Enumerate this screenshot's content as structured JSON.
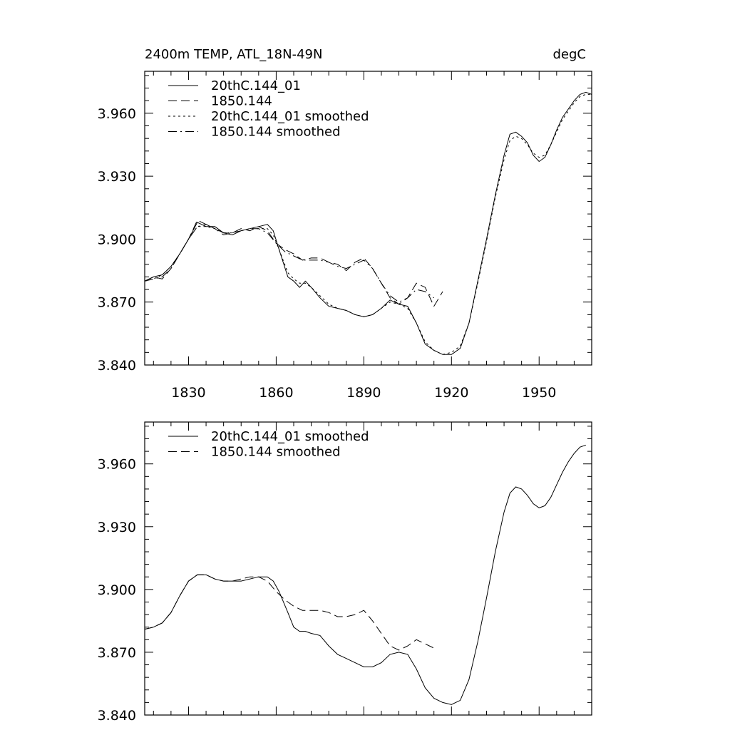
{
  "chart_data": [
    {
      "type": "line",
      "title": "2400m TEMP, ATL_18N-49N",
      "units_label": "degC",
      "xlabel": "",
      "ylabel": "",
      "xlim": [
        1815,
        1968
      ],
      "ylim": [
        3.84,
        3.98
      ],
      "xticks": [
        "1830",
        "1860",
        "1890",
        "1920",
        "1950"
      ],
      "yticks": [
        "3.840",
        "3.870",
        "3.900",
        "3.930",
        "3.960"
      ],
      "legend_position": "top-left",
      "series": [
        {
          "name": "20thC.144_01",
          "style": "solid",
          "x": [
            1815,
            1818,
            1821,
            1824,
            1827,
            1830,
            1833,
            1836,
            1839,
            1842,
            1845,
            1848,
            1851,
            1854,
            1857,
            1859,
            1861,
            1864,
            1866,
            1868,
            1870,
            1872,
            1875,
            1878,
            1881,
            1884,
            1887,
            1890,
            1893,
            1896,
            1899,
            1902,
            1905,
            1908,
            1911,
            1914,
            1917,
            1920,
            1923,
            1926,
            1929,
            1932,
            1935,
            1938,
            1940,
            1942,
            1944,
            1946,
            1948,
            1950,
            1952,
            1954,
            1956,
            1958,
            1960,
            1962,
            1964,
            1966,
            1968
          ],
          "values": [
            3.88,
            3.882,
            3.883,
            3.887,
            3.893,
            3.9,
            3.908,
            3.906,
            3.906,
            3.903,
            3.902,
            3.904,
            3.905,
            3.906,
            3.907,
            3.904,
            3.895,
            3.882,
            3.88,
            3.877,
            3.88,
            3.877,
            3.872,
            3.868,
            3.867,
            3.866,
            3.864,
            3.863,
            3.864,
            3.867,
            3.871,
            3.869,
            3.868,
            3.86,
            3.85,
            3.847,
            3.845,
            3.845,
            3.848,
            3.86,
            3.88,
            3.9,
            3.921,
            3.94,
            3.95,
            3.951,
            3.949,
            3.946,
            3.94,
            3.937,
            3.939,
            3.945,
            3.952,
            3.958,
            3.962,
            3.966,
            3.969,
            3.97,
            3.969
          ]
        },
        {
          "name": "1850.144",
          "style": "dashed",
          "x": [
            1815,
            1818,
            1821,
            1824,
            1827,
            1830,
            1833,
            1836,
            1839,
            1842,
            1845,
            1848,
            1851,
            1854,
            1857,
            1860,
            1863,
            1866,
            1869,
            1872,
            1875,
            1878,
            1881,
            1884,
            1887,
            1890,
            1893,
            1896,
            1899,
            1902,
            1905,
            1908,
            1911,
            1914,
            1917
          ],
          "values": [
            3.88,
            3.882,
            3.881,
            3.886,
            3.893,
            3.9,
            3.909,
            3.907,
            3.905,
            3.902,
            3.903,
            3.905,
            3.904,
            3.906,
            3.904,
            3.898,
            3.895,
            3.893,
            3.89,
            3.891,
            3.891,
            3.889,
            3.888,
            3.885,
            3.889,
            3.891,
            3.886,
            3.879,
            3.872,
            3.869,
            3.872,
            3.879,
            3.877,
            3.868,
            3.875
          ]
        },
        {
          "name": "20thC.144_01 smoothed",
          "style": "dotted",
          "x": [
            1815,
            1818,
            1821,
            1824,
            1827,
            1830,
            1833,
            1836,
            1839,
            1842,
            1845,
            1848,
            1851,
            1854,
            1857,
            1859,
            1861,
            1864,
            1866,
            1868,
            1870,
            1872,
            1875,
            1878,
            1881,
            1884,
            1887,
            1890,
            1893,
            1896,
            1899,
            1902,
            1905,
            1908,
            1911,
            1914,
            1917,
            1920,
            1923,
            1926,
            1929,
            1932,
            1935,
            1938,
            1940,
            1942,
            1944,
            1946,
            1948,
            1950,
            1952,
            1954,
            1956,
            1958,
            1960,
            1962,
            1964,
            1966,
            1968
          ],
          "values": [
            3.88,
            3.881,
            3.883,
            3.887,
            3.893,
            3.9,
            3.906,
            3.906,
            3.905,
            3.903,
            3.903,
            3.904,
            3.905,
            3.905,
            3.905,
            3.902,
            3.895,
            3.884,
            3.881,
            3.879,
            3.879,
            3.877,
            3.873,
            3.869,
            3.867,
            3.866,
            3.864,
            3.863,
            3.864,
            3.867,
            3.87,
            3.869,
            3.867,
            3.86,
            3.851,
            3.847,
            3.845,
            3.846,
            3.849,
            3.86,
            3.879,
            3.899,
            3.92,
            3.938,
            3.947,
            3.949,
            3.948,
            3.945,
            3.941,
            3.939,
            3.94,
            3.945,
            3.951,
            3.957,
            3.961,
            3.965,
            3.968,
            3.969,
            3.969
          ]
        },
        {
          "name": "1850.144 smoothed",
          "style": "dashdot",
          "x": [
            1815,
            1818,
            1821,
            1824,
            1827,
            1830,
            1833,
            1836,
            1839,
            1842,
            1845,
            1848,
            1851,
            1854,
            1857,
            1860,
            1863,
            1866,
            1869,
            1872,
            1875,
            1878,
            1881,
            1884,
            1887,
            1890,
            1893,
            1896,
            1899,
            1902,
            1905,
            1908,
            1911,
            1914
          ],
          "values": [
            3.88,
            3.881,
            3.882,
            3.886,
            3.893,
            3.9,
            3.906,
            3.907,
            3.905,
            3.903,
            3.903,
            3.904,
            3.905,
            3.905,
            3.903,
            3.898,
            3.894,
            3.892,
            3.89,
            3.89,
            3.89,
            3.889,
            3.887,
            3.886,
            3.888,
            3.89,
            3.886,
            3.879,
            3.873,
            3.87,
            3.872,
            3.876,
            3.875,
            3.872
          ]
        }
      ]
    },
    {
      "type": "line",
      "title": "",
      "xlabel": "",
      "ylabel": "",
      "xlim": [
        1815,
        1968
      ],
      "ylim": [
        3.84,
        3.98
      ],
      "xticks": [],
      "yticks": [
        "3.840",
        "3.870",
        "3.900",
        "3.930",
        "3.960"
      ],
      "legend_position": "top-left",
      "series": [
        {
          "name": "20thC.144_01 smoothed",
          "style": "solid",
          "x": [
            1815,
            1818,
            1821,
            1824,
            1827,
            1830,
            1833,
            1836,
            1839,
            1842,
            1845,
            1848,
            1851,
            1854,
            1857,
            1859,
            1861,
            1864,
            1866,
            1868,
            1870,
            1872,
            1875,
            1878,
            1881,
            1884,
            1887,
            1890,
            1893,
            1896,
            1899,
            1902,
            1905,
            1908,
            1911,
            1914,
            1917,
            1920,
            1923,
            1926,
            1929,
            1932,
            1935,
            1938,
            1940,
            1942,
            1944,
            1946,
            1948,
            1950,
            1952,
            1954,
            1956,
            1958,
            1960,
            1962,
            1964,
            1966
          ],
          "values": [
            3.881,
            3.882,
            3.884,
            3.889,
            3.897,
            3.904,
            3.907,
            3.907,
            3.905,
            3.904,
            3.904,
            3.904,
            3.905,
            3.906,
            3.906,
            3.904,
            3.899,
            3.889,
            3.882,
            3.88,
            3.88,
            3.879,
            3.878,
            3.873,
            3.869,
            3.867,
            3.865,
            3.863,
            3.863,
            3.865,
            3.869,
            3.87,
            3.869,
            3.862,
            3.853,
            3.848,
            3.846,
            3.845,
            3.847,
            3.857,
            3.875,
            3.896,
            3.918,
            3.937,
            3.946,
            3.949,
            3.948,
            3.945,
            3.941,
            3.939,
            3.94,
            3.944,
            3.95,
            3.956,
            3.961,
            3.965,
            3.968,
            3.969
          ]
        },
        {
          "name": "1850.144 smoothed",
          "style": "dashed",
          "x": [
            1815,
            1818,
            1821,
            1824,
            1827,
            1830,
            1833,
            1836,
            1839,
            1842,
            1845,
            1848,
            1851,
            1854,
            1857,
            1860,
            1863,
            1866,
            1869,
            1872,
            1875,
            1878,
            1881,
            1884,
            1887,
            1890,
            1893,
            1896,
            1899,
            1902,
            1905,
            1908,
            1911,
            1914
          ],
          "values": [
            3.881,
            3.882,
            3.884,
            3.889,
            3.897,
            3.904,
            3.907,
            3.907,
            3.905,
            3.904,
            3.904,
            3.905,
            3.906,
            3.906,
            3.904,
            3.899,
            3.895,
            3.892,
            3.89,
            3.89,
            3.89,
            3.889,
            3.887,
            3.887,
            3.888,
            3.89,
            3.885,
            3.879,
            3.873,
            3.871,
            3.873,
            3.876,
            3.874,
            3.872
          ]
        }
      ]
    }
  ]
}
